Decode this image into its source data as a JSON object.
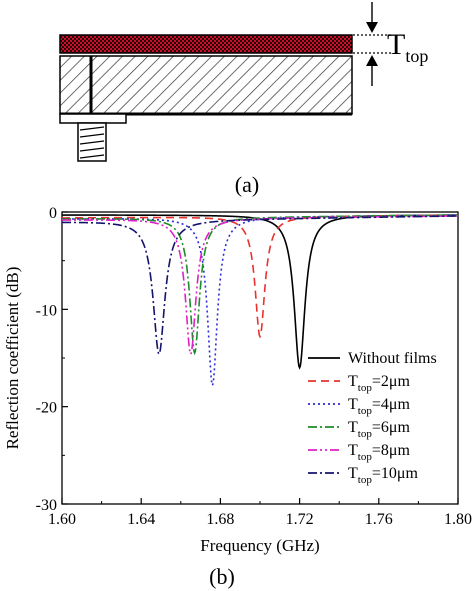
{
  "panel_a": {
    "caption": "(a)",
    "thickness_label": "T",
    "thickness_sub": "top"
  },
  "panel_b": {
    "caption": "(b)"
  },
  "chart_data": {
    "type": "line",
    "xlabel": "Frequency (GHz)",
    "ylabel": "Reflection coefficient (dB)",
    "xlim": [
      1.6,
      1.8
    ],
    "ylim": [
      -30,
      0
    ],
    "xticks": [
      "1.60",
      "1.64",
      "1.68",
      "1.72",
      "1.76",
      "1.80"
    ],
    "yticks": [
      "0",
      "-10",
      "-20",
      "-30"
    ],
    "legend_position": "right",
    "series": [
      {
        "name": "Without films",
        "name_main": "Without films",
        "name_sub": "",
        "name_rest": "",
        "color": "#000000",
        "dash": "solid",
        "f0": 1.72,
        "min": -16.0,
        "hw": 0.0033,
        "base": -0.3,
        "slope": 0
      },
      {
        "name": "Ttop=2μm",
        "name_main": "T",
        "name_sub": "top",
        "name_rest": "=2μm",
        "color": "#e8322f",
        "dash": "dash",
        "f0": 1.7,
        "min": -12.8,
        "hw": 0.003,
        "base": -0.6,
        "slope": 0.3
      },
      {
        "name": "Ttop=4μm",
        "name_main": "T",
        "name_sub": "top",
        "name_rest": "=4μm",
        "color": "#2a2ad8",
        "dash": "dot",
        "f0": 1.676,
        "min": -17.8,
        "hw": 0.003,
        "base": -0.7,
        "slope": 0.4
      },
      {
        "name": "Ttop=6μm",
        "name_main": "T",
        "name_sub": "top",
        "name_rest": "=6μm",
        "color": "#1f8c2a",
        "dash": "dashdot",
        "f0": 1.667,
        "min": -14.5,
        "hw": 0.003,
        "base": -0.7,
        "slope": 0.4
      },
      {
        "name": "Ttop=8μm",
        "name_main": "T",
        "name_sub": "top",
        "name_rest": "=8μm",
        "color": "#e020c8",
        "dash": "dashdotdot",
        "f0": 1.665,
        "min": -14.6,
        "hw": 0.0032,
        "base": -0.8,
        "slope": 0.4
      },
      {
        "name": "Ttop=10μm",
        "name_main": "T",
        "name_sub": "top",
        "name_rest": "=10μm",
        "color": "#14146e",
        "dash": "dashdot",
        "f0": 1.649,
        "min": -14.6,
        "hw": 0.0036,
        "base": -1.0,
        "slope": 0.6
      }
    ]
  }
}
